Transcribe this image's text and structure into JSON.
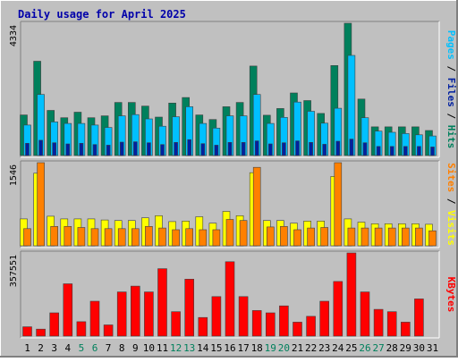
{
  "chart_data": {
    "type": "bar",
    "title": "Daily usage for April 2025",
    "colors": {
      "pages": "#00c0ff",
      "files": "#0020a0",
      "hits": "#00805c",
      "visits": "#ffff00",
      "sites": "#ff8000",
      "kbytes": "#ff0000",
      "weekend_tick": "#00805c",
      "panel_bg": "#c0c0c0",
      "frame": "#808080"
    },
    "days": [
      "1",
      "2",
      "3",
      "4",
      "5",
      "6",
      "7",
      "8",
      "9",
      "10",
      "11",
      "12",
      "13",
      "14",
      "15",
      "16",
      "17",
      "18",
      "19",
      "20",
      "21",
      "22",
      "23",
      "24",
      "25",
      "26",
      "27",
      "28",
      "29",
      "30",
      "31"
    ],
    "weekend_days": [
      "5",
      "6",
      "12",
      "13",
      "19",
      "20",
      "26",
      "27"
    ],
    "panels": [
      {
        "id": "hits_files_pages",
        "max_label": "4334",
        "side_labels": [
          {
            "text": "Pages",
            "color": "#00c0ff"
          },
          {
            "text": " / ",
            "color": "#000000"
          },
          {
            "text": "Files",
            "color": "#0020a0"
          },
          {
            "text": " / ",
            "color": "#000000"
          },
          {
            "text": "Hits",
            "color": "#00805c"
          }
        ],
        "max": 4334,
        "series": [
          {
            "name": "Hits",
            "color": "#00805c",
            "values": [
              1330,
              3090,
              1480,
              1240,
              1420,
              1240,
              1300,
              1740,
              1740,
              1620,
              1260,
              1720,
              1900,
              1330,
              1180,
              1600,
              1740,
              2930,
              1320,
              1540,
              2050,
              1800,
              1380,
              2950,
              4334,
              1850,
              940,
              940,
              940,
              940,
              820
            ]
          },
          {
            "name": "Pages",
            "color": "#00c0ff",
            "values": [
              1000,
              2000,
              1100,
              1050,
              1050,
              1000,
              920,
              1300,
              1340,
              1200,
              960,
              1270,
              1600,
              1050,
              900,
              1300,
              1300,
              2000,
              1050,
              1250,
              1750,
              1450,
              1060,
              1550,
              3280,
              1240,
              800,
              760,
              720,
              680,
              640
            ]
          },
          {
            "name": "Files",
            "color": "#0020a0",
            "values": [
              400,
              500,
              420,
              380,
              400,
              360,
              340,
              440,
              450,
              420,
              360,
              430,
              520,
              390,
              340,
              430,
              430,
              480,
              380,
              420,
              480,
              430,
              370,
              470,
              540,
              420,
              300,
              300,
              300,
              300,
              280
            ]
          }
        ]
      },
      {
        "id": "visits_sites",
        "max_label": "1546",
        "side_labels": [
          {
            "text": "Sites",
            "color": "#ff8000"
          },
          {
            "text": " / ",
            "color": "#000000"
          },
          {
            "text": "Visits",
            "color": "#ffff00"
          }
        ],
        "max": 1546,
        "series": [
          {
            "name": "Visits",
            "color": "#ffff00",
            "values": [
              500,
              1350,
              550,
              500,
              500,
              500,
              480,
              470,
              470,
              520,
              560,
              450,
              460,
              540,
              420,
              640,
              560,
              1360,
              470,
              470,
              420,
              460,
              460,
              1290,
              500,
              440,
              410,
              410,
              410,
              410,
              400
            ]
          },
          {
            "name": "Sites",
            "color": "#ff8000",
            "values": [
              320,
              1546,
              360,
              360,
              340,
              320,
              320,
              320,
              320,
              360,
              330,
              300,
              320,
              300,
              300,
              490,
              470,
              1460,
              350,
              360,
              300,
              330,
              340,
              1546,
              330,
              330,
              330,
              330,
              330,
              330,
              280
            ]
          }
        ]
      },
      {
        "id": "kbytes",
        "max_label": "357551",
        "side_labels": [
          {
            "text": "KBytes",
            "color": "#ff0000"
          }
        ],
        "max": 357551,
        "series": [
          {
            "name": "KBytes",
            "color": "#ff0000",
            "values": [
              40000,
              30000,
              100000,
              225000,
              62000,
              150000,
              48000,
              190000,
              215000,
              190000,
              290000,
              105000,
              245000,
              80000,
              170000,
              320000,
              170000,
              110000,
              100000,
              130000,
              60000,
              85000,
              150000,
              235000,
              357551,
              190000,
              115000,
              105000,
              60000,
              160000,
              0
            ]
          }
        ]
      }
    ]
  }
}
